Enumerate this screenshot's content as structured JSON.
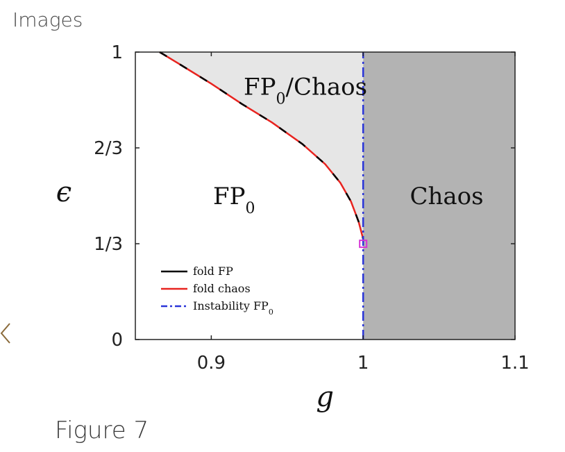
{
  "header": {
    "title": "Images"
  },
  "caption": "Figure 7",
  "nav": {
    "prev_icon": "chevron-left-icon",
    "color": "#8a6a3a"
  },
  "chart_data": {
    "type": "line",
    "xlabel": "g",
    "ylabel": "ϵ",
    "xlim": [
      0.85,
      1.1
    ],
    "ylim": [
      0,
      1
    ],
    "xticks": [
      {
        "value": 0.9,
        "label": "0.9"
      },
      {
        "value": 1.0,
        "label": "1"
      },
      {
        "value": 1.1,
        "label": "1.1"
      }
    ],
    "yticks": [
      {
        "value": 0,
        "label": "0"
      },
      {
        "value": 0.3333,
        "label": "1/3"
      },
      {
        "value": 0.6667,
        "label": "2/3"
      },
      {
        "value": 1,
        "label": "1"
      }
    ],
    "regions": [
      {
        "label_main": "FP",
        "label_sub": "0",
        "label_rest": "",
        "x": 0.915,
        "y": 0.5
      },
      {
        "label_main": "FP",
        "label_sub": "0",
        "label_rest": "/Chaos",
        "x": 0.962,
        "y": 0.88
      },
      {
        "label_main": "Chaos",
        "label_sub": "",
        "label_rest": "",
        "x": 1.055,
        "y": 0.5
      }
    ],
    "fill_colors": {
      "fp0_chaos": "#e6e6e6",
      "chaos": "#b3b3b3"
    },
    "series": [
      {
        "name": "fold FP",
        "color": "#000000",
        "x": [
          0.866,
          0.88,
          0.9,
          0.92,
          0.94,
          0.96,
          0.975,
          0.985,
          0.992,
          0.997,
          1.0
        ],
        "y": [
          1.0,
          0.955,
          0.89,
          0.82,
          0.755,
          0.68,
          0.61,
          0.545,
          0.48,
          0.41,
          0.35
        ]
      },
      {
        "name": "fold chaos",
        "color": "#e8231f",
        "x": [
          0.866,
          0.88,
          0.9,
          0.92,
          0.94,
          0.96,
          0.975,
          0.985,
          0.992,
          0.997,
          1.0
        ],
        "y": [
          1.0,
          0.955,
          0.89,
          0.82,
          0.755,
          0.68,
          0.61,
          0.545,
          0.48,
          0.41,
          0.35
        ]
      },
      {
        "name": "Instability FP",
        "name_sub": "0",
        "color": "#2a35d8",
        "x": [
          1.0,
          1.0
        ],
        "y": [
          0.0,
          1.0
        ]
      }
    ],
    "marker": {
      "x": 1.0,
      "y": 0.333,
      "color": "#d633d6",
      "shape": "square"
    },
    "legend_position": "bottom-left",
    "grid": false
  }
}
